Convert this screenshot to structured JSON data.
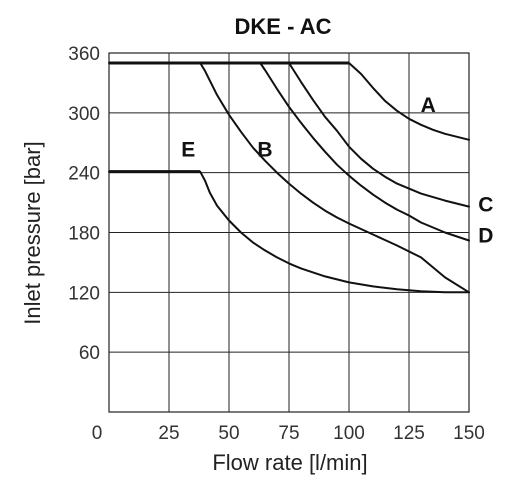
{
  "chart_data": {
    "type": "line",
    "title": "DKE - AC",
    "xlabel": "Flow rate [l/min]",
    "ylabel": "Inlet pressure [bar]",
    "xlim": [
      0,
      150
    ],
    "ylim": [
      0,
      360
    ],
    "xticks": [
      "0",
      "25",
      "50",
      "75",
      "100",
      "125",
      "150"
    ],
    "yticks": [
      "60",
      "120",
      "180",
      "240",
      "300",
      "360"
    ],
    "grid": true,
    "series": [
      {
        "name": "A",
        "x": [
          0,
          100,
          105,
          110,
          115,
          120,
          125,
          130,
          135,
          140,
          150
        ],
        "y": [
          350,
          350,
          339,
          325,
          312,
          302,
          294,
          288,
          283,
          279,
          273
        ]
      },
      {
        "name": "B",
        "x": [
          38,
          40,
          45,
          50,
          55,
          60,
          65,
          70,
          75,
          80,
          85,
          90,
          95,
          100,
          110,
          120,
          130,
          140,
          150
        ],
        "y": [
          350,
          342,
          318,
          298,
          281,
          265,
          252,
          240,
          229,
          219,
          210,
          202,
          195,
          189,
          178,
          167,
          155,
          135,
          120
        ]
      },
      {
        "name": "C",
        "x": [
          75,
          80,
          85,
          90,
          95,
          100,
          105,
          110,
          115,
          120,
          125,
          130,
          140,
          150
        ],
        "y": [
          350,
          331,
          313,
          296,
          282,
          266,
          254,
          244,
          236,
          229,
          224,
          219,
          212,
          206
        ]
      },
      {
        "name": "D",
        "x": [
          63,
          65,
          70,
          75,
          80,
          85,
          90,
          95,
          100,
          105,
          110,
          115,
          120,
          125,
          130,
          140,
          150
        ],
        "y": [
          350,
          343,
          324,
          306,
          290,
          275,
          261,
          248,
          237,
          227,
          218,
          210,
          203,
          197,
          190,
          180,
          172
        ]
      },
      {
        "name": "E",
        "x": [
          0,
          38,
          40,
          42,
          45,
          50,
          55,
          60,
          65,
          70,
          75,
          80,
          90,
          100,
          110,
          120,
          130,
          140,
          150
        ],
        "y": [
          241,
          241,
          232,
          220,
          207,
          192,
          180,
          170,
          162,
          155,
          149,
          144,
          136,
          130,
          126,
          123,
          121,
          120,
          120
        ]
      }
    ],
    "labels": [
      {
        "text": "A",
        "x": 133,
        "y": 301
      },
      {
        "text": "B",
        "x": 65,
        "y": 256
      },
      {
        "text": "C",
        "x": 157,
        "y": 201
      },
      {
        "text": "D",
        "x": 157,
        "y": 170
      },
      {
        "text": "E",
        "x": 33,
        "y": 256
      }
    ]
  }
}
